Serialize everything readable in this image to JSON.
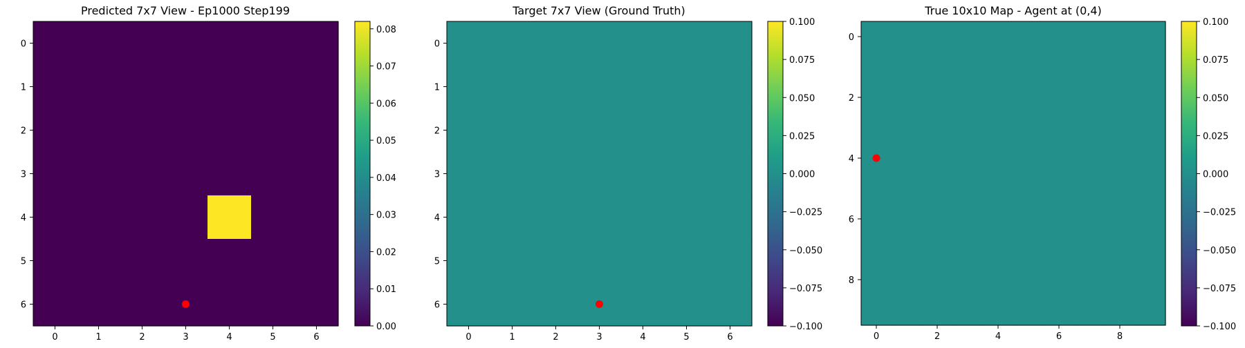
{
  "chart_data": [
    {
      "type": "heatmap",
      "title": "Predicted 7x7 View - Ep1000 Step199",
      "grid_size": [
        7,
        7
      ],
      "cells": [
        [
          0,
          0,
          0,
          0,
          0,
          0,
          0
        ],
        [
          0,
          0,
          0,
          0,
          0,
          0,
          0
        ],
        [
          0,
          0,
          0,
          0,
          0,
          0,
          0
        ],
        [
          0,
          0,
          0,
          0,
          0,
          0,
          0
        ],
        [
          0,
          0,
          0,
          0,
          0.082,
          0,
          0
        ],
        [
          0,
          0,
          0,
          0,
          0,
          0,
          0
        ],
        [
          0,
          0,
          0,
          0,
          0,
          0,
          0
        ]
      ],
      "value_range": [
        0,
        0.082
      ],
      "xticks": [
        "0",
        "1",
        "2",
        "3",
        "4",
        "5",
        "6"
      ],
      "yticks": [
        "0",
        "1",
        "2",
        "3",
        "4",
        "5",
        "6"
      ],
      "marker": {
        "x": 3,
        "y": 6,
        "color": "#ff0000"
      },
      "colorbar": {
        "colormap": "viridis",
        "min": 0,
        "max": 0.082,
        "ticks": [
          0,
          0.01,
          0.02,
          0.03,
          0.04,
          0.05,
          0.06,
          0.07,
          0.08
        ],
        "tick_labels": [
          "0.00",
          "0.01",
          "0.02",
          "0.03",
          "0.04",
          "0.05",
          "0.06",
          "0.07",
          "0.08"
        ]
      }
    },
    {
      "type": "heatmap",
      "title": "Target 7x7 View (Ground Truth)",
      "grid_size": [
        7,
        7
      ],
      "uniform_value": 0,
      "value_range": [
        -0.1,
        0.1
      ],
      "xticks": [
        "0",
        "1",
        "2",
        "3",
        "4",
        "5",
        "6"
      ],
      "yticks": [
        "0",
        "1",
        "2",
        "3",
        "4",
        "5",
        "6"
      ],
      "marker": {
        "x": 3,
        "y": 6,
        "color": "#ff0000"
      },
      "colorbar": {
        "colormap": "viridis",
        "min": -0.1,
        "max": 0.1,
        "ticks": [
          -0.1,
          -0.075,
          -0.05,
          -0.025,
          0,
          0.025,
          0.05,
          0.075,
          0.1
        ],
        "tick_labels": [
          "−0.100",
          "−0.075",
          "−0.050",
          "−0.025",
          "0.000",
          "0.025",
          "0.050",
          "0.075",
          "0.100"
        ]
      }
    },
    {
      "type": "heatmap",
      "title": "True 10x10 Map - Agent at (0,4)",
      "grid_size": [
        10,
        10
      ],
      "uniform_value": 0,
      "value_range": [
        -0.1,
        0.1
      ],
      "xticks": [
        "0",
        "2",
        "4",
        "6",
        "8"
      ],
      "yticks": [
        "0",
        "2",
        "4",
        "6",
        "8"
      ],
      "marker": {
        "x": 0,
        "y": 4,
        "color": "#ff0000"
      },
      "colorbar": {
        "colormap": "viridis",
        "min": -0.1,
        "max": 0.1,
        "ticks": [
          -0.1,
          -0.075,
          -0.05,
          -0.025,
          0,
          0.025,
          0.05,
          0.075,
          0.1
        ],
        "tick_labels": [
          "−0.100",
          "−0.075",
          "−0.050",
          "−0.025",
          "0.000",
          "0.025",
          "0.050",
          "0.075",
          "0.100"
        ]
      }
    }
  ]
}
